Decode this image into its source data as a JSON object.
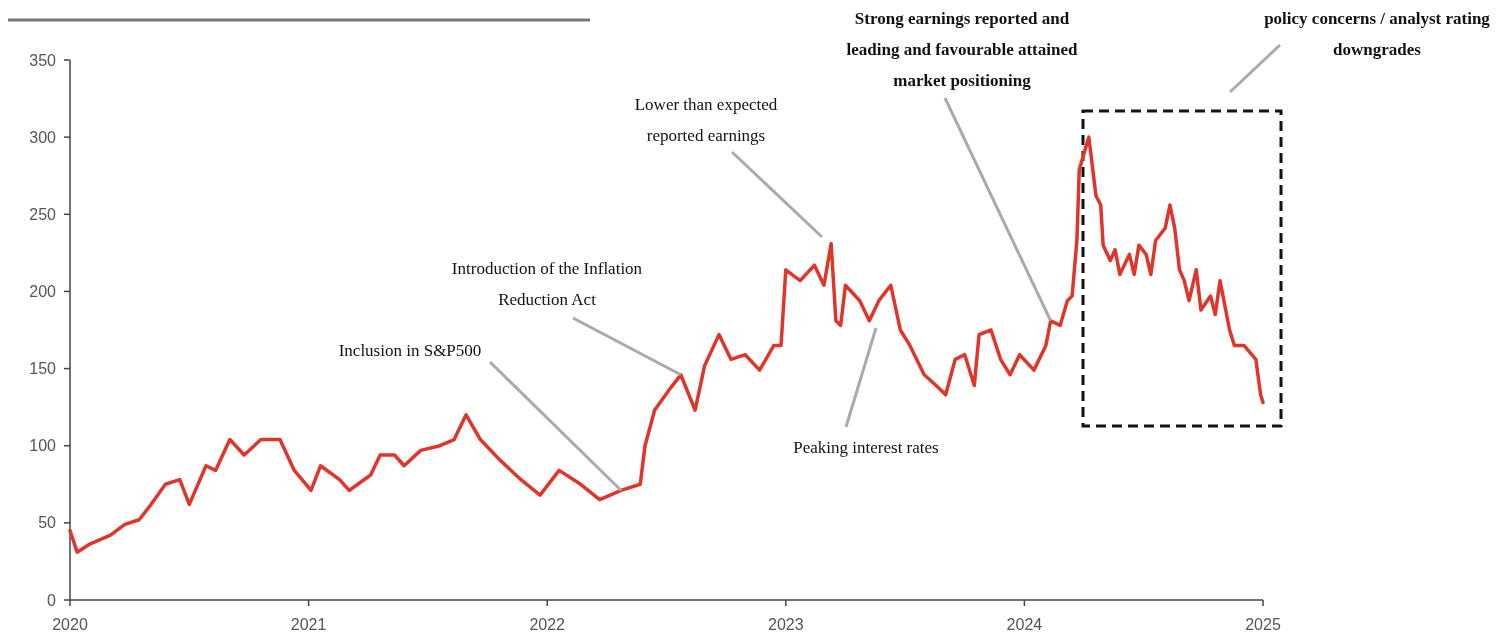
{
  "chart_data": {
    "type": "line",
    "xlim": [
      2020,
      2025
    ],
    "xticks": [
      2020,
      2021,
      2022,
      2023,
      2024,
      2025
    ],
    "ylim": [
      0,
      350
    ],
    "yticks": [
      0,
      50,
      100,
      150,
      200,
      250,
      300,
      350
    ],
    "grid": false,
    "line_style": "solid",
    "series": [
      {
        "color": "#e0352b",
        "x": [
          2020.0,
          2020.03,
          2020.08,
          2020.17,
          2020.23,
          2020.29,
          2020.34,
          2020.4,
          2020.46,
          2020.5,
          2020.57,
          2020.61,
          2020.67,
          2020.73,
          2020.8,
          2020.88,
          2020.94,
          2021.01,
          2021.05,
          2021.13,
          2021.17,
          2021.26,
          2021.3,
          2021.36,
          2021.4,
          2021.47,
          2021.55,
          2021.61,
          2021.66,
          2021.72,
          2021.8,
          2021.89,
          2021.97,
          2022.05,
          2022.14,
          2022.22,
          2022.31,
          2022.39,
          2022.41,
          2022.45,
          2022.51,
          2022.56,
          2022.62,
          2022.66,
          2022.72,
          2022.77,
          2022.83,
          2022.89,
          2022.95,
          2022.98,
          2023.0,
          2023.06,
          2023.12,
          2023.16,
          2023.19,
          2023.21,
          2023.23,
          2023.25,
          2023.31,
          2023.35,
          2023.39,
          2023.44,
          2023.48,
          2023.52,
          2023.58,
          2023.63,
          2023.67,
          2023.71,
          2023.75,
          2023.79,
          2023.81,
          2023.86,
          2023.9,
          2023.94,
          2023.98,
          2024.04,
          2024.09,
          2024.11,
          2024.15,
          2024.18,
          2024.2,
          2024.22,
          2024.23,
          2024.27,
          2024.3,
          2024.32,
          2024.33,
          2024.36,
          2024.38,
          2024.4,
          2024.44,
          2024.46,
          2024.48,
          2024.51,
          2024.53,
          2024.55,
          2024.59,
          2024.61,
          2024.63,
          2024.65,
          2024.67,
          2024.69,
          2024.72,
          2024.74,
          2024.78,
          2024.8,
          2024.82,
          2024.86,
          2024.88,
          2024.92,
          2024.97,
          2024.99,
          2025.0
        ],
        "values": [
          45,
          31,
          36,
          42,
          49,
          52,
          62,
          75,
          78,
          62,
          87,
          84,
          104,
          94,
          104,
          104,
          84,
          71,
          87,
          78,
          71,
          81,
          94,
          94,
          87,
          97,
          100,
          104,
          120,
          104,
          91,
          78,
          68,
          84,
          75,
          65,
          71,
          75,
          100,
          123,
          136,
          146,
          123,
          152,
          172,
          156,
          159,
          149,
          165,
          165,
          214,
          207,
          217,
          204,
          231,
          181,
          178,
          204,
          194,
          181,
          194,
          204,
          175,
          165,
          146,
          139,
          133,
          156,
          159,
          139,
          172,
          175,
          156,
          146,
          159,
          149,
          165,
          181,
          178,
          194,
          197,
          233,
          279,
          300,
          262,
          256,
          230,
          220,
          227,
          211,
          224,
          211,
          230,
          224,
          211,
          233,
          241,
          256,
          241,
          214,
          207,
          194,
          214,
          188,
          197,
          185,
          207,
          175,
          165,
          165,
          156,
          133,
          128
        ]
      }
    ],
    "annotations": [
      {
        "text": "Inclusion in S&P500",
        "x": 2022.31,
        "y": 71
      },
      {
        "text": "Introduction of the Inflation\nReduction Act",
        "x": 2022.56,
        "y": 146
      },
      "Lower than expected\nreported earnings",
      "Peaking interest rates",
      {
        "text": "Strong earnings reported and\nleading and favourable attained\nmarket positioning",
        "x": 2024.11,
        "y": 181
      },
      "policy concerns / analyst rating\ndowngrades"
    ]
  }
}
